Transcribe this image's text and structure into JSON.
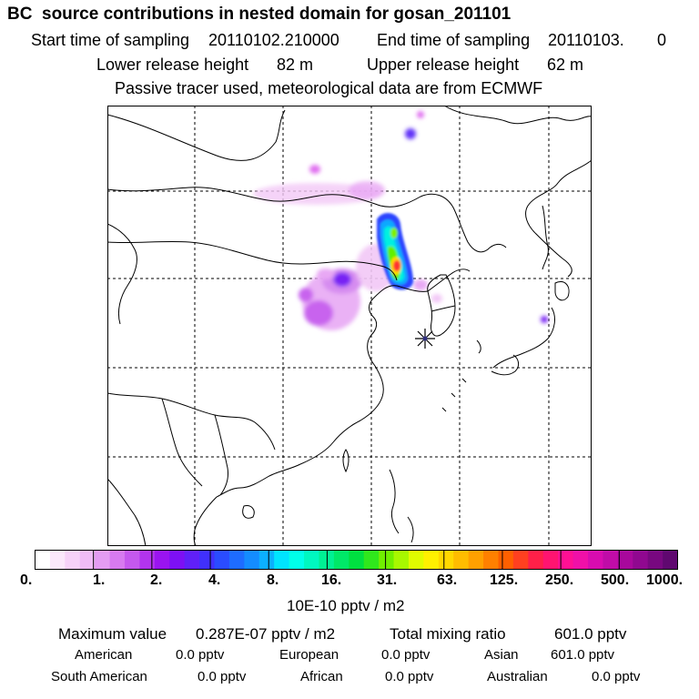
{
  "title": "BC  source contributions in nested domain for gosan_201101",
  "sampling": {
    "start_label": "Start time of sampling",
    "start_value": "20110102.210000",
    "end_label": "End time of sampling",
    "end_value": "20110103.",
    "end_suffix": "0"
  },
  "release": {
    "lower_label": "Lower release height",
    "lower_value": "82 m",
    "upper_label": "Upper release height",
    "upper_value": "62 m"
  },
  "subtitle": "Passive tracer used, meteorological data are from ECMWF",
  "colorbar": {
    "ticks": [
      "0.",
      "1.",
      "2.",
      "4.",
      "8.",
      "16.",
      "31.",
      "63.",
      "125.",
      "250.",
      "500.",
      "1000."
    ],
    "unit": "10E-10 pptv / m2",
    "colors": [
      "#ffffff",
      "#fbe8fb",
      "#f6d2f8",
      "#f0bcf6",
      "#e49cf2",
      "#d77af0",
      "#c558ee",
      "#b234ee",
      "#9a14f0",
      "#7d10f4",
      "#6020f8",
      "#4030fc",
      "#2a4cff",
      "#1e6cff",
      "#148cff",
      "#0cb0ff",
      "#00e4ff",
      "#00ffea",
      "#00f8c0",
      "#00f094",
      "#00e868",
      "#00e040",
      "#30e81c",
      "#70f000",
      "#a8f800",
      "#e0fc00",
      "#fff000",
      "#ffd800",
      "#ffbc00",
      "#ffa000",
      "#ff8000",
      "#ff6000",
      "#ff4020",
      "#ff2048",
      "#ff1470",
      "#ff1094",
      "#f010a8",
      "#d80cb0",
      "#c00ca8",
      "#a8089c",
      "#900890",
      "#780880",
      "#600870"
    ]
  },
  "stats": {
    "max_label": "Maximum value",
    "max_value": "0.287E-07 pptv / m2",
    "total_label": "Total mixing ratio",
    "total_value": "601.0 pptv"
  },
  "regions": {
    "american_label": "American",
    "american_value": "0.0 pptv",
    "european_label": "European",
    "european_value": "0.0 pptv",
    "asian_label": "Asian",
    "asian_value": "601.0 pptv",
    "south_american_label": "South American",
    "south_american_value": "0.0 pptv",
    "african_label": "African",
    "african_value": "0.0 pptv",
    "australian_label": "Australian",
    "australian_value": "0.0 pptv"
  },
  "map": {
    "receptor_marker": "asterisk-icon",
    "plume": [
      {
        "lon": 127.0,
        "lat": 40.9,
        "level": 8.0
      },
      {
        "lon": 126.4,
        "lat": 43.6,
        "level": 3.0
      },
      {
        "lon": 127.0,
        "lat": 42.3,
        "level": 5.0
      },
      {
        "lon": 113.5,
        "lat": 40.3,
        "level": 2.0
      },
      {
        "lon": 118.2,
        "lat": 55.6,
        "level": 2.0
      },
      {
        "lon": 122.4,
        "lat": 58.4,
        "level": 1.5
      },
      {
        "lon": 144.6,
        "lat": 36.7,
        "level": 1.5
      }
    ]
  }
}
